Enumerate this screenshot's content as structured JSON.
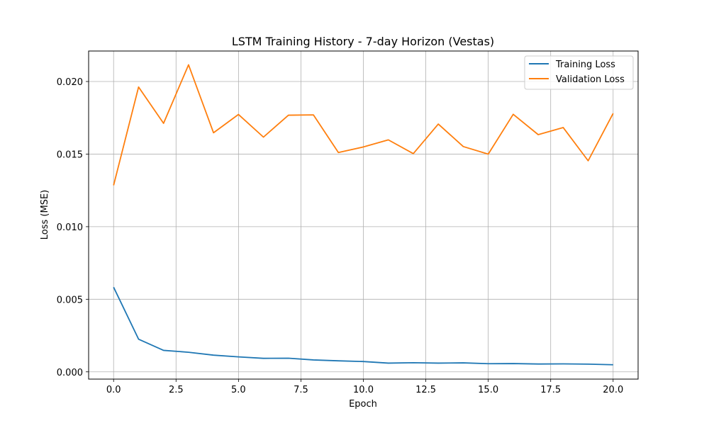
{
  "chart_data": {
    "type": "line",
    "title": "LSTM Training History - 7-day Horizon (Vestas)",
    "xlabel": "Epoch",
    "ylabel": "Loss (MSE)",
    "xlim": [
      -1.0,
      21.0
    ],
    "ylim": [
      -0.0005,
      0.0221
    ],
    "xticks": [
      0.0,
      2.5,
      5.0,
      7.5,
      10.0,
      12.5,
      15.0,
      17.5,
      20.0
    ],
    "xtick_labels": [
      "0.0",
      "2.5",
      "5.0",
      "7.5",
      "10.0",
      "12.5",
      "15.0",
      "17.5",
      "20.0"
    ],
    "yticks": [
      0.0,
      0.005,
      0.01,
      0.015,
      0.02
    ],
    "ytick_labels": [
      "0.000",
      "0.005",
      "0.010",
      "0.015",
      "0.020"
    ],
    "grid": true,
    "legend_position": "top-right",
    "x": [
      0,
      1,
      2,
      3,
      4,
      5,
      6,
      7,
      8,
      9,
      10,
      11,
      12,
      13,
      14,
      15,
      16,
      17,
      18,
      19,
      20
    ],
    "series": [
      {
        "name": "Training Loss",
        "color": "#1f77b4",
        "values": [
          0.00583,
          0.00225,
          0.00148,
          0.00135,
          0.00115,
          0.00103,
          0.00093,
          0.00094,
          0.00082,
          0.00076,
          0.00071,
          0.0006,
          0.00063,
          0.0006,
          0.00062,
          0.00056,
          0.00057,
          0.00054,
          0.00055,
          0.00053,
          0.00049
        ]
      },
      {
        "name": "Validation Loss",
        "color": "#ff7f0e",
        "values": [
          0.01285,
          0.01962,
          0.01712,
          0.02115,
          0.01647,
          0.01773,
          0.01617,
          0.01768,
          0.0177,
          0.01511,
          0.01549,
          0.01598,
          0.01503,
          0.01707,
          0.01552,
          0.015,
          0.01774,
          0.01634,
          0.01683,
          0.01454,
          0.0178
        ]
      }
    ]
  }
}
